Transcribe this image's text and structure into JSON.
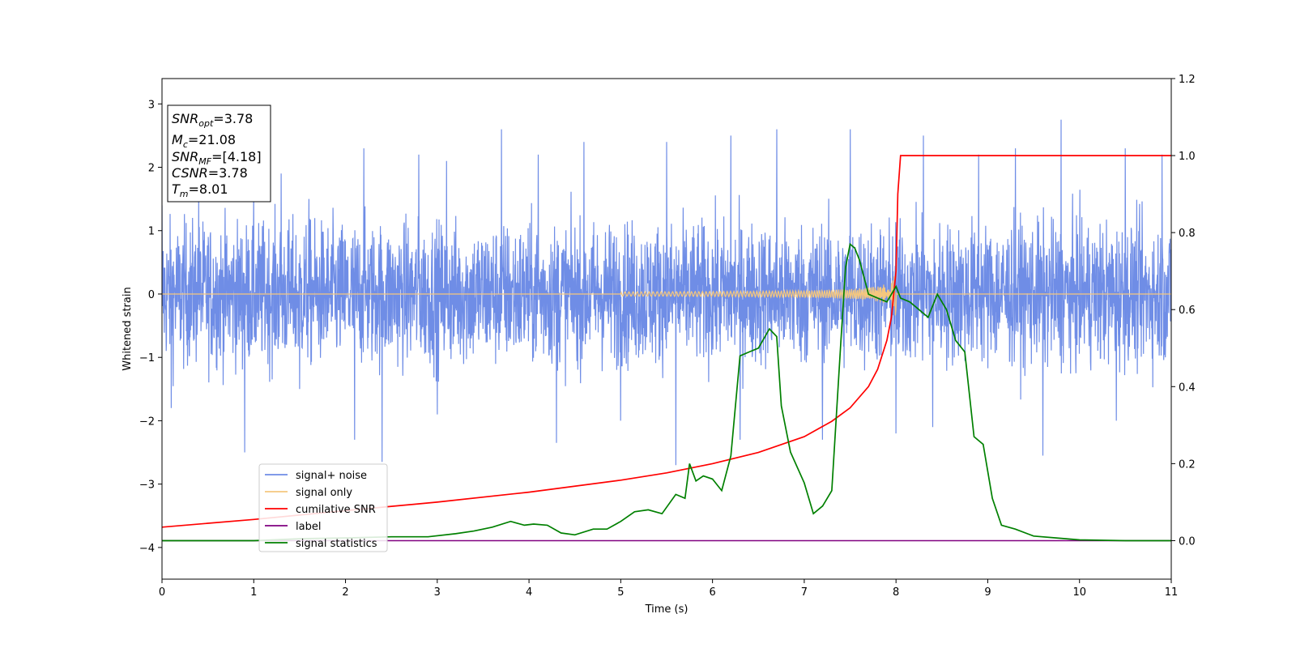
{
  "chart_data": {
    "type": "line",
    "xlabel": "Time (s)",
    "ylabel": "Whitened strain",
    "xlim": [
      0,
      11
    ],
    "ylim": [
      -4.5,
      3.4
    ],
    "y2lim": [
      -0.1,
      1.2
    ],
    "x_ticks": [
      "0",
      "1",
      "2",
      "3",
      "4",
      "5",
      "6",
      "7",
      "8",
      "9",
      "10",
      "11"
    ],
    "y_ticks": [
      "3",
      "2",
      "1",
      "0",
      "−1",
      "−2",
      "−3",
      "−4"
    ],
    "y2_ticks": [
      "1.2",
      "1.0",
      "0.8",
      "0.6",
      "0.4",
      "0.2",
      "0.0"
    ],
    "grid": false,
    "legend_position": "lower-left",
    "colors": {
      "signal_noise": "#6f8de6",
      "signal_only": "#f5c77e",
      "cumulative_snr": "#ff0000",
      "label": "#800080",
      "signal_statistics": "#008000"
    },
    "info_box": {
      "snr_opt": {
        "symbol": "SNR",
        "sub": "opt",
        "value": "=3.78"
      },
      "mc": {
        "symbol": "M",
        "sub": "c",
        "value": "=21.08"
      },
      "snr_mf": {
        "symbol": "SNR",
        "sub": "MF",
        "value": "=[4.18]"
      },
      "csnr": {
        "symbol": "CSNR",
        "sub": "",
        "value": "=3.78"
      },
      "tm": {
        "symbol": "T",
        "sub": "m",
        "value": "=8.01"
      }
    },
    "series": [
      {
        "name": "signal+ noise",
        "axis": "left",
        "kind": "noise",
        "noise_std": 0.55,
        "peaks_max": [
          [
            0.0,
            1.4
          ],
          [
            0.4,
            1.5
          ],
          [
            1.0,
            1.6
          ],
          [
            1.3,
            1.9
          ],
          [
            1.6,
            1.5
          ],
          [
            2.2,
            2.3
          ],
          [
            2.8,
            2.2
          ],
          [
            3.1,
            2.1
          ],
          [
            3.7,
            2.6
          ],
          [
            4.1,
            2.2
          ],
          [
            4.6,
            2.4
          ],
          [
            5.5,
            2.4
          ],
          [
            6.2,
            2.5
          ],
          [
            6.7,
            2.6
          ],
          [
            7.5,
            2.6
          ],
          [
            8.0,
            2.6
          ],
          [
            8.3,
            2.5
          ],
          [
            8.9,
            2.2
          ],
          [
            9.3,
            2.3
          ],
          [
            9.8,
            2.75
          ],
          [
            10.5,
            2.3
          ],
          [
            10.9,
            2.2
          ]
        ],
        "peaks_min": [
          [
            0.1,
            -1.8
          ],
          [
            0.9,
            -2.5
          ],
          [
            1.5,
            -1.5
          ],
          [
            2.1,
            -2.3
          ],
          [
            2.4,
            -2.65
          ],
          [
            3.0,
            -1.9
          ],
          [
            4.3,
            -2.35
          ],
          [
            5.0,
            -2.0
          ],
          [
            5.6,
            -2.7
          ],
          [
            6.3,
            -2.3
          ],
          [
            7.2,
            -2.3
          ],
          [
            8.0,
            -2.2
          ],
          [
            8.4,
            -2.1
          ],
          [
            9.6,
            -2.55
          ],
          [
            10.4,
            -2.0
          ]
        ]
      },
      {
        "name": "signal only",
        "axis": "left",
        "kind": "chirp",
        "start": 5.0,
        "merger": 8.01,
        "amplitude_at_start": 0.01,
        "amplitude_at_merger": 0.5
      },
      {
        "name": "cumilative SNR",
        "axis": "right",
        "x": [
          0,
          1,
          2,
          3,
          4,
          5,
          5.5,
          6,
          6.5,
          7,
          7.3,
          7.5,
          7.7,
          7.8,
          7.9,
          7.95,
          8.0,
          8.02,
          8.05,
          11
        ],
        "y": [
          0.035,
          0.055,
          0.078,
          0.1,
          0.126,
          0.157,
          0.176,
          0.2,
          0.229,
          0.27,
          0.31,
          0.345,
          0.4,
          0.445,
          0.52,
          0.58,
          0.7,
          0.9,
          1.0,
          1.0
        ]
      },
      {
        "name": "label",
        "axis": "right",
        "x": [
          0,
          11
        ],
        "y": [
          0,
          0
        ]
      },
      {
        "name": "signal statistics",
        "axis": "right",
        "x": [
          0,
          0.5,
          1,
          1.5,
          2,
          2.5,
          2.9,
          3.2,
          3.4,
          3.6,
          3.8,
          3.95,
          4.05,
          4.2,
          4.35,
          4.5,
          4.7,
          4.85,
          5.0,
          5.15,
          5.3,
          5.45,
          5.6,
          5.7,
          5.75,
          5.82,
          5.9,
          6.0,
          6.1,
          6.2,
          6.3,
          6.4,
          6.5,
          6.62,
          6.7,
          6.75,
          6.85,
          7.0,
          7.1,
          7.2,
          7.3,
          7.4,
          7.45,
          7.5,
          7.55,
          7.6,
          7.7,
          7.8,
          7.9,
          8.0,
          8.05,
          8.15,
          8.25,
          8.35,
          8.45,
          8.55,
          8.65,
          8.75,
          8.85,
          8.95,
          9.05,
          9.15,
          9.3,
          9.5,
          9.8,
          10.0,
          10.5,
          11.0
        ],
        "y": [
          0.0,
          0.0,
          0.0,
          0.005,
          0.007,
          0.01,
          0.01,
          0.018,
          0.025,
          0.035,
          0.05,
          0.04,
          0.043,
          0.04,
          0.02,
          0.015,
          0.03,
          0.03,
          0.05,
          0.075,
          0.08,
          0.07,
          0.12,
          0.11,
          0.2,
          0.155,
          0.168,
          0.16,
          0.13,
          0.22,
          0.48,
          0.49,
          0.5,
          0.55,
          0.53,
          0.35,
          0.23,
          0.15,
          0.07,
          0.09,
          0.13,
          0.52,
          0.71,
          0.77,
          0.76,
          0.73,
          0.64,
          0.63,
          0.62,
          0.66,
          0.63,
          0.62,
          0.6,
          0.58,
          0.64,
          0.6,
          0.52,
          0.49,
          0.27,
          0.25,
          0.11,
          0.04,
          0.03,
          0.012,
          0.006,
          0.002,
          0.0,
          0.0
        ]
      }
    ]
  }
}
